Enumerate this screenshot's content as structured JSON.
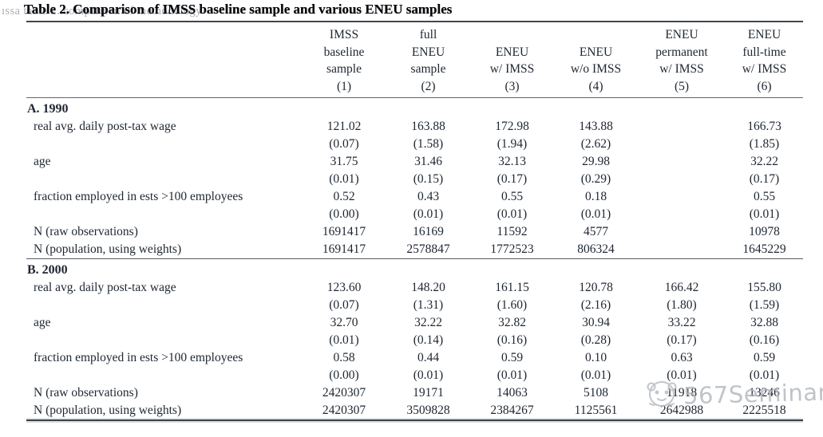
{
  "header": {
    "title": "Table 2. Comparison of IMSS baseline sample and various ENEU samples",
    "ghost_text": "ıssa table 2. comparison of methodology"
  },
  "watermark": {
    "text": "567Seminar",
    "color": "#b1b6bb",
    "logo": "cartoon-mascot-icon"
  },
  "table": {
    "type": "table",
    "columns": [
      {
        "lines": [
          "IMSS",
          "baseline",
          "sample",
          "(1)"
        ]
      },
      {
        "lines": [
          "full",
          "ENEU",
          "sample",
          "(2)"
        ]
      },
      {
        "lines": [
          "",
          "ENEU",
          "w/ IMSS",
          "(3)"
        ]
      },
      {
        "lines": [
          "",
          "ENEU",
          "w/o IMSS",
          "(4)"
        ]
      },
      {
        "lines": [
          "ENEU",
          "permanent",
          "w/ IMSS",
          "(5)"
        ]
      },
      {
        "lines": [
          "ENEU",
          "full-time",
          "w/ IMSS",
          "(6)"
        ]
      }
    ],
    "panels": [
      {
        "label": "A. 1990",
        "rows": [
          {
            "label": "real avg. daily post-tax wage",
            "values": [
              "121.02",
              "163.88",
              "172.98",
              "143.88",
              "",
              "166.73"
            ]
          },
          {
            "label": "",
            "values": [
              "(0.07)",
              "(1.58)",
              "(1.94)",
              "(2.62)",
              "",
              "(1.85)"
            ]
          },
          {
            "label": "age",
            "values": [
              "31.75",
              "31.46",
              "32.13",
              "29.98",
              "",
              "32.22"
            ]
          },
          {
            "label": "",
            "values": [
              "(0.01)",
              "(0.15)",
              "(0.17)",
              "(0.29)",
              "",
              "(0.17)"
            ]
          },
          {
            "label": "fraction employed in ests >100 employees",
            "values": [
              "0.52",
              "0.43",
              "0.55",
              "0.18",
              "",
              "0.55"
            ]
          },
          {
            "label": "",
            "values": [
              "(0.00)",
              "(0.01)",
              "(0.01)",
              "(0.01)",
              "",
              "(0.01)"
            ]
          },
          {
            "label": "N (raw observations)",
            "values": [
              "1691417",
              "16169",
              "11592",
              "4577",
              "",
              "10978"
            ]
          },
          {
            "label": "N (population, using weights)",
            "values": [
              "1691417",
              "2578847",
              "1772523",
              "806324",
              "",
              "1645229"
            ]
          }
        ]
      },
      {
        "label": "B. 2000",
        "rows": [
          {
            "label": "real avg. daily post-tax wage",
            "values": [
              "123.60",
              "148.20",
              "161.15",
              "120.78",
              "166.42",
              "155.80"
            ]
          },
          {
            "label": "",
            "values": [
              "(0.07)",
              "(1.31)",
              "(1.60)",
              "(2.16)",
              "(1.80)",
              "(1.59)"
            ]
          },
          {
            "label": "age",
            "values": [
              "32.70",
              "32.22",
              "32.82",
              "30.94",
              "33.22",
              "32.88"
            ]
          },
          {
            "label": "",
            "values": [
              "(0.01)",
              "(0.14)",
              "(0.16)",
              "(0.28)",
              "(0.17)",
              "(0.16)"
            ]
          },
          {
            "label": "fraction employed in ests >100 employees",
            "values": [
              "0.58",
              "0.44",
              "0.59",
              "0.10",
              "0.63",
              "0.59"
            ]
          },
          {
            "label": "",
            "values": [
              "(0.00)",
              "(0.01)",
              "(0.01)",
              "(0.01)",
              "(0.01)",
              "(0.01)"
            ]
          },
          {
            "label": "N (raw observations)",
            "values": [
              "2420307",
              "19171",
              "14063",
              "5108",
              "11918",
              "13246"
            ]
          },
          {
            "label": "N (population, using weights)",
            "values": [
              "2420307",
              "3509828",
              "2384267",
              "1125561",
              "2642988",
              "2225518"
            ]
          }
        ]
      }
    ]
  }
}
